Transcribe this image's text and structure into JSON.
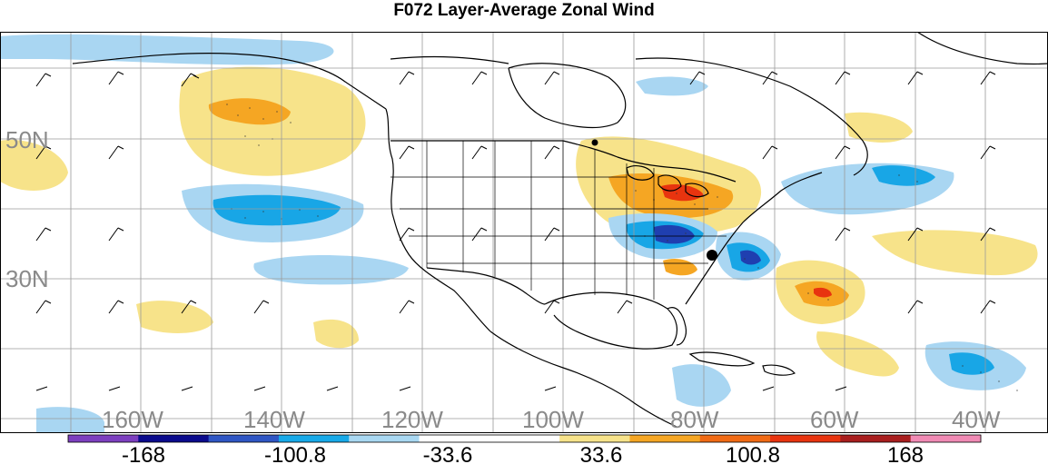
{
  "title": "F072 Layer-Average Zonal Wind",
  "map": {
    "lat_labels": [
      "50N",
      "30N"
    ],
    "lon_labels": [
      "160W",
      "140W",
      "120W",
      "100W",
      "80W",
      "60W",
      "40W"
    ]
  },
  "colorbar": {
    "colors": [
      "#7d3fbf",
      "#0a0a8c",
      "#2f56c4",
      "#17a9e8",
      "#a9d8f2",
      "#ffffff",
      "#ffffff",
      "#f7e38a",
      "#f5a623",
      "#f06a14",
      "#e8340f",
      "#a81e1e",
      "#f08ab4"
    ],
    "tick_labels": [
      "-168",
      "-100.8",
      "-33.6",
      "33.6",
      "100.8",
      "168"
    ]
  },
  "colors": {
    "strong_negative": "#1f3fb0",
    "negative": "#18a6e6",
    "weak_negative": "#a9d6f2",
    "weak_positive": "#f7e38a",
    "positive": "#f5a623",
    "strong_positive": "#e8340f"
  }
}
